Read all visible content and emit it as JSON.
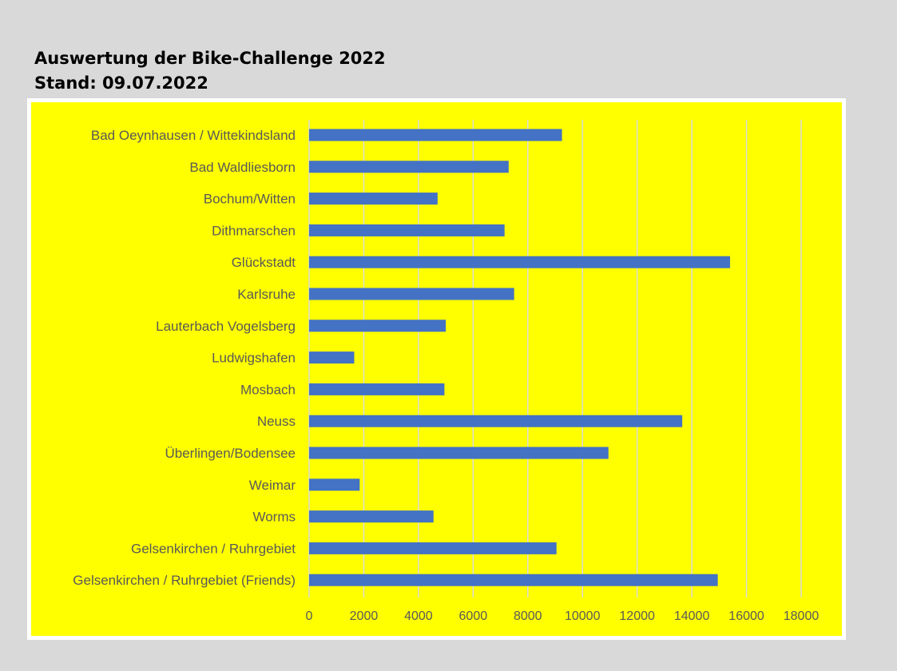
{
  "heading": {
    "title": "Auswertung der Bike-Challenge 2022",
    "subtitle": "Stand: 09.07.2022"
  },
  "colors": {
    "page_background": "#d9d9d9",
    "plot_background": "#ffff00",
    "frame": "#ffffff",
    "bar": "#4472c4",
    "gridline": "#d9d9d9",
    "axis_text": "#595959"
  },
  "chart_data": {
    "type": "bar",
    "orientation": "horizontal",
    "title": "Auswertung der Bike-Challenge 2022",
    "subtitle": "Stand: 09.07.2022",
    "categories": [
      "Bad Oeynhausen / Wittekindsland",
      "Bad Waldliesborn",
      "Bochum/Witten",
      "Dithmarschen",
      "Glückstadt",
      "Karlsruhe",
      "Lauterbach Vogelsberg",
      "Ludwigshafen",
      "Mosbach",
      "Neuss",
      "Überlingen/Bodensee",
      "Weimar",
      "Worms",
      "Gelsenkirchen / Ruhrgebiet",
      "Gelsenkirchen / Ruhrgebiet (Friends)"
    ],
    "values": [
      9250,
      7300,
      4700,
      7150,
      15400,
      7500,
      5000,
      1650,
      4950,
      13650,
      10950,
      1850,
      4550,
      9050,
      14950
    ],
    "xlim": [
      0,
      18000
    ],
    "xticks": [
      0,
      2000,
      4000,
      6000,
      8000,
      10000,
      12000,
      14000,
      16000,
      18000
    ],
    "tick_labels": [
      "0",
      "2000",
      "4000",
      "6000",
      "8000",
      "10000",
      "12000",
      "14000",
      "16000",
      "18000"
    ],
    "grid": true,
    "legend": "none",
    "xlabel": "",
    "ylabel": ""
  }
}
